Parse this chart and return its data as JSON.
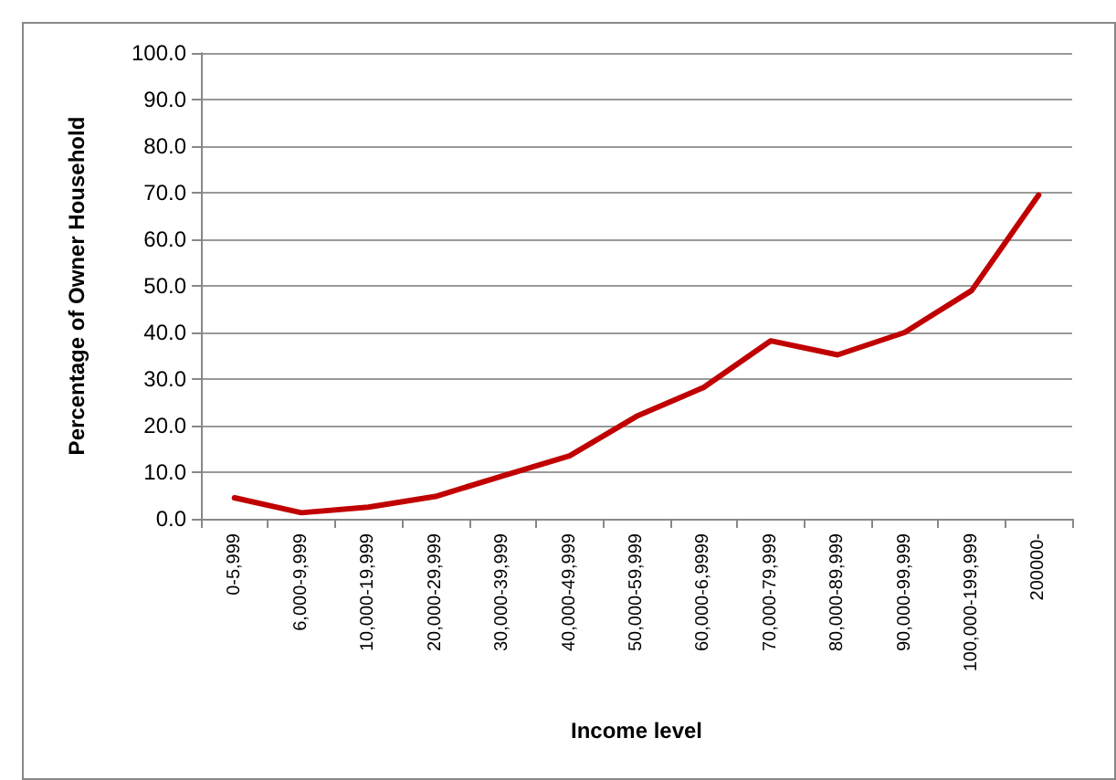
{
  "chart_data": {
    "type": "line",
    "xlabel": "Income level",
    "ylabel": "Percentage of Owner Household",
    "categories": [
      "0-5,999",
      "6,000-9,999",
      "10,000-19,999",
      "20,000-29,999",
      "30,000-39,999",
      "40,000-49,999",
      "50,000-59,999",
      "60,000-6,9999",
      "70,000-79,999",
      "80,000-89,999",
      "90,000-99,999",
      "100,000-199,999",
      "200000-"
    ],
    "series": [
      {
        "color": "#c00000",
        "values": [
          4.5,
          1.3,
          2.5,
          4.8,
          9.2,
          13.5,
          22.0,
          28.2,
          38.2,
          35.2,
          40.0,
          49.0,
          69.5
        ]
      }
    ],
    "ylim": [
      0,
      100
    ],
    "yticks": [
      {
        "value": 0,
        "label": "0.0"
      },
      {
        "value": 10,
        "label": "10.0"
      },
      {
        "value": 20,
        "label": "20.0"
      },
      {
        "value": 30,
        "label": "30.0"
      },
      {
        "value": 40,
        "label": "40.0"
      },
      {
        "value": 50,
        "label": "50.0"
      },
      {
        "value": 60,
        "label": "60.0"
      },
      {
        "value": 70,
        "label": "70.0"
      },
      {
        "value": 80,
        "label": "80.0"
      },
      {
        "value": 90,
        "label": "90.0"
      },
      {
        "value": 100,
        "label": "100.0"
      }
    ],
    "grid": "y",
    "marker": "none",
    "line_style": "solid"
  }
}
